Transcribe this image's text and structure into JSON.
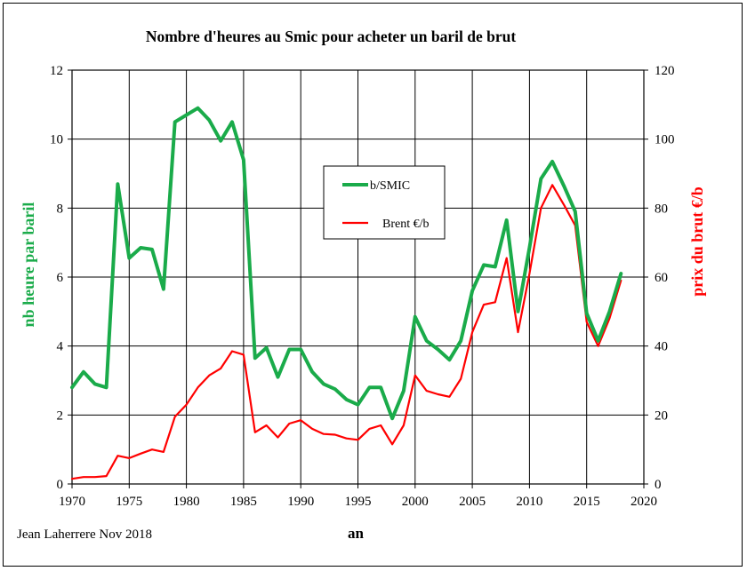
{
  "chart_data": {
    "type": "line",
    "title": "Nombre d'heures au Smic pour acheter un baril de brut",
    "xlabel": "an",
    "ylabel_left": "nb heure par baril",
    "ylabel_right": "prix du brut €/b",
    "xlim": [
      1970,
      2020
    ],
    "ylim_left": [
      0,
      12
    ],
    "ylim_right": [
      0,
      120
    ],
    "grid": true,
    "legend_position": "center",
    "x_ticks": [
      1970,
      1975,
      1980,
      1985,
      1990,
      1995,
      2000,
      2005,
      2010,
      2015,
      2020
    ],
    "y_ticks_left": [
      0,
      2,
      4,
      6,
      8,
      10,
      12
    ],
    "y_ticks_right": [
      0,
      20,
      40,
      60,
      80,
      100,
      120
    ],
    "x": [
      1970,
      1971,
      1972,
      1973,
      1974,
      1975,
      1976,
      1977,
      1978,
      1979,
      1980,
      1981,
      1982,
      1983,
      1984,
      1985,
      1986,
      1987,
      1988,
      1989,
      1990,
      1991,
      1992,
      1993,
      1994,
      1995,
      1996,
      1997,
      1998,
      1999,
      2000,
      2001,
      2002,
      2003,
      2004,
      2005,
      2006,
      2007,
      2008,
      2009,
      2010,
      2011,
      2012,
      2013,
      2014,
      2015,
      2016,
      2017,
      2018
    ],
    "series": [
      {
        "name": "b/SMIC",
        "axis": "left",
        "color": "#1aab4a",
        "values": [
          2.8,
          3.25,
          2.9,
          2.8,
          8.7,
          6.55,
          6.85,
          6.8,
          5.65,
          10.5,
          10.7,
          10.9,
          10.55,
          9.95,
          10.5,
          9.4,
          3.65,
          3.95,
          3.1,
          3.9,
          3.9,
          3.25,
          2.9,
          2.75,
          2.45,
          2.3,
          2.8,
          2.8,
          1.9,
          2.7,
          4.85,
          4.15,
          3.9,
          3.6,
          4.15,
          5.6,
          6.35,
          6.3,
          7.65,
          5.0,
          6.85,
          8.85,
          9.35,
          8.65,
          7.9,
          4.95,
          4.15,
          5.0,
          6.1
        ]
      },
      {
        "name": "Brent €/b",
        "axis": "right",
        "color": "#ff0000",
        "values": [
          1.5,
          2,
          2,
          2.3,
          8.2,
          7.5,
          8.8,
          10,
          9.3,
          19.5,
          23,
          28,
          31.5,
          33.5,
          38.5,
          37.5,
          15,
          17,
          13.5,
          17.5,
          18.5,
          16,
          14.5,
          14.3,
          13.2,
          12.8,
          16,
          17,
          11.5,
          17,
          31.5,
          27,
          26,
          25.3,
          30.5,
          44,
          52,
          52.7,
          65.5,
          44,
          61,
          80,
          86.7,
          81,
          75,
          47,
          40,
          48,
          59
        ]
      }
    ],
    "credit": "Jean Laherrere Nov 2018"
  }
}
